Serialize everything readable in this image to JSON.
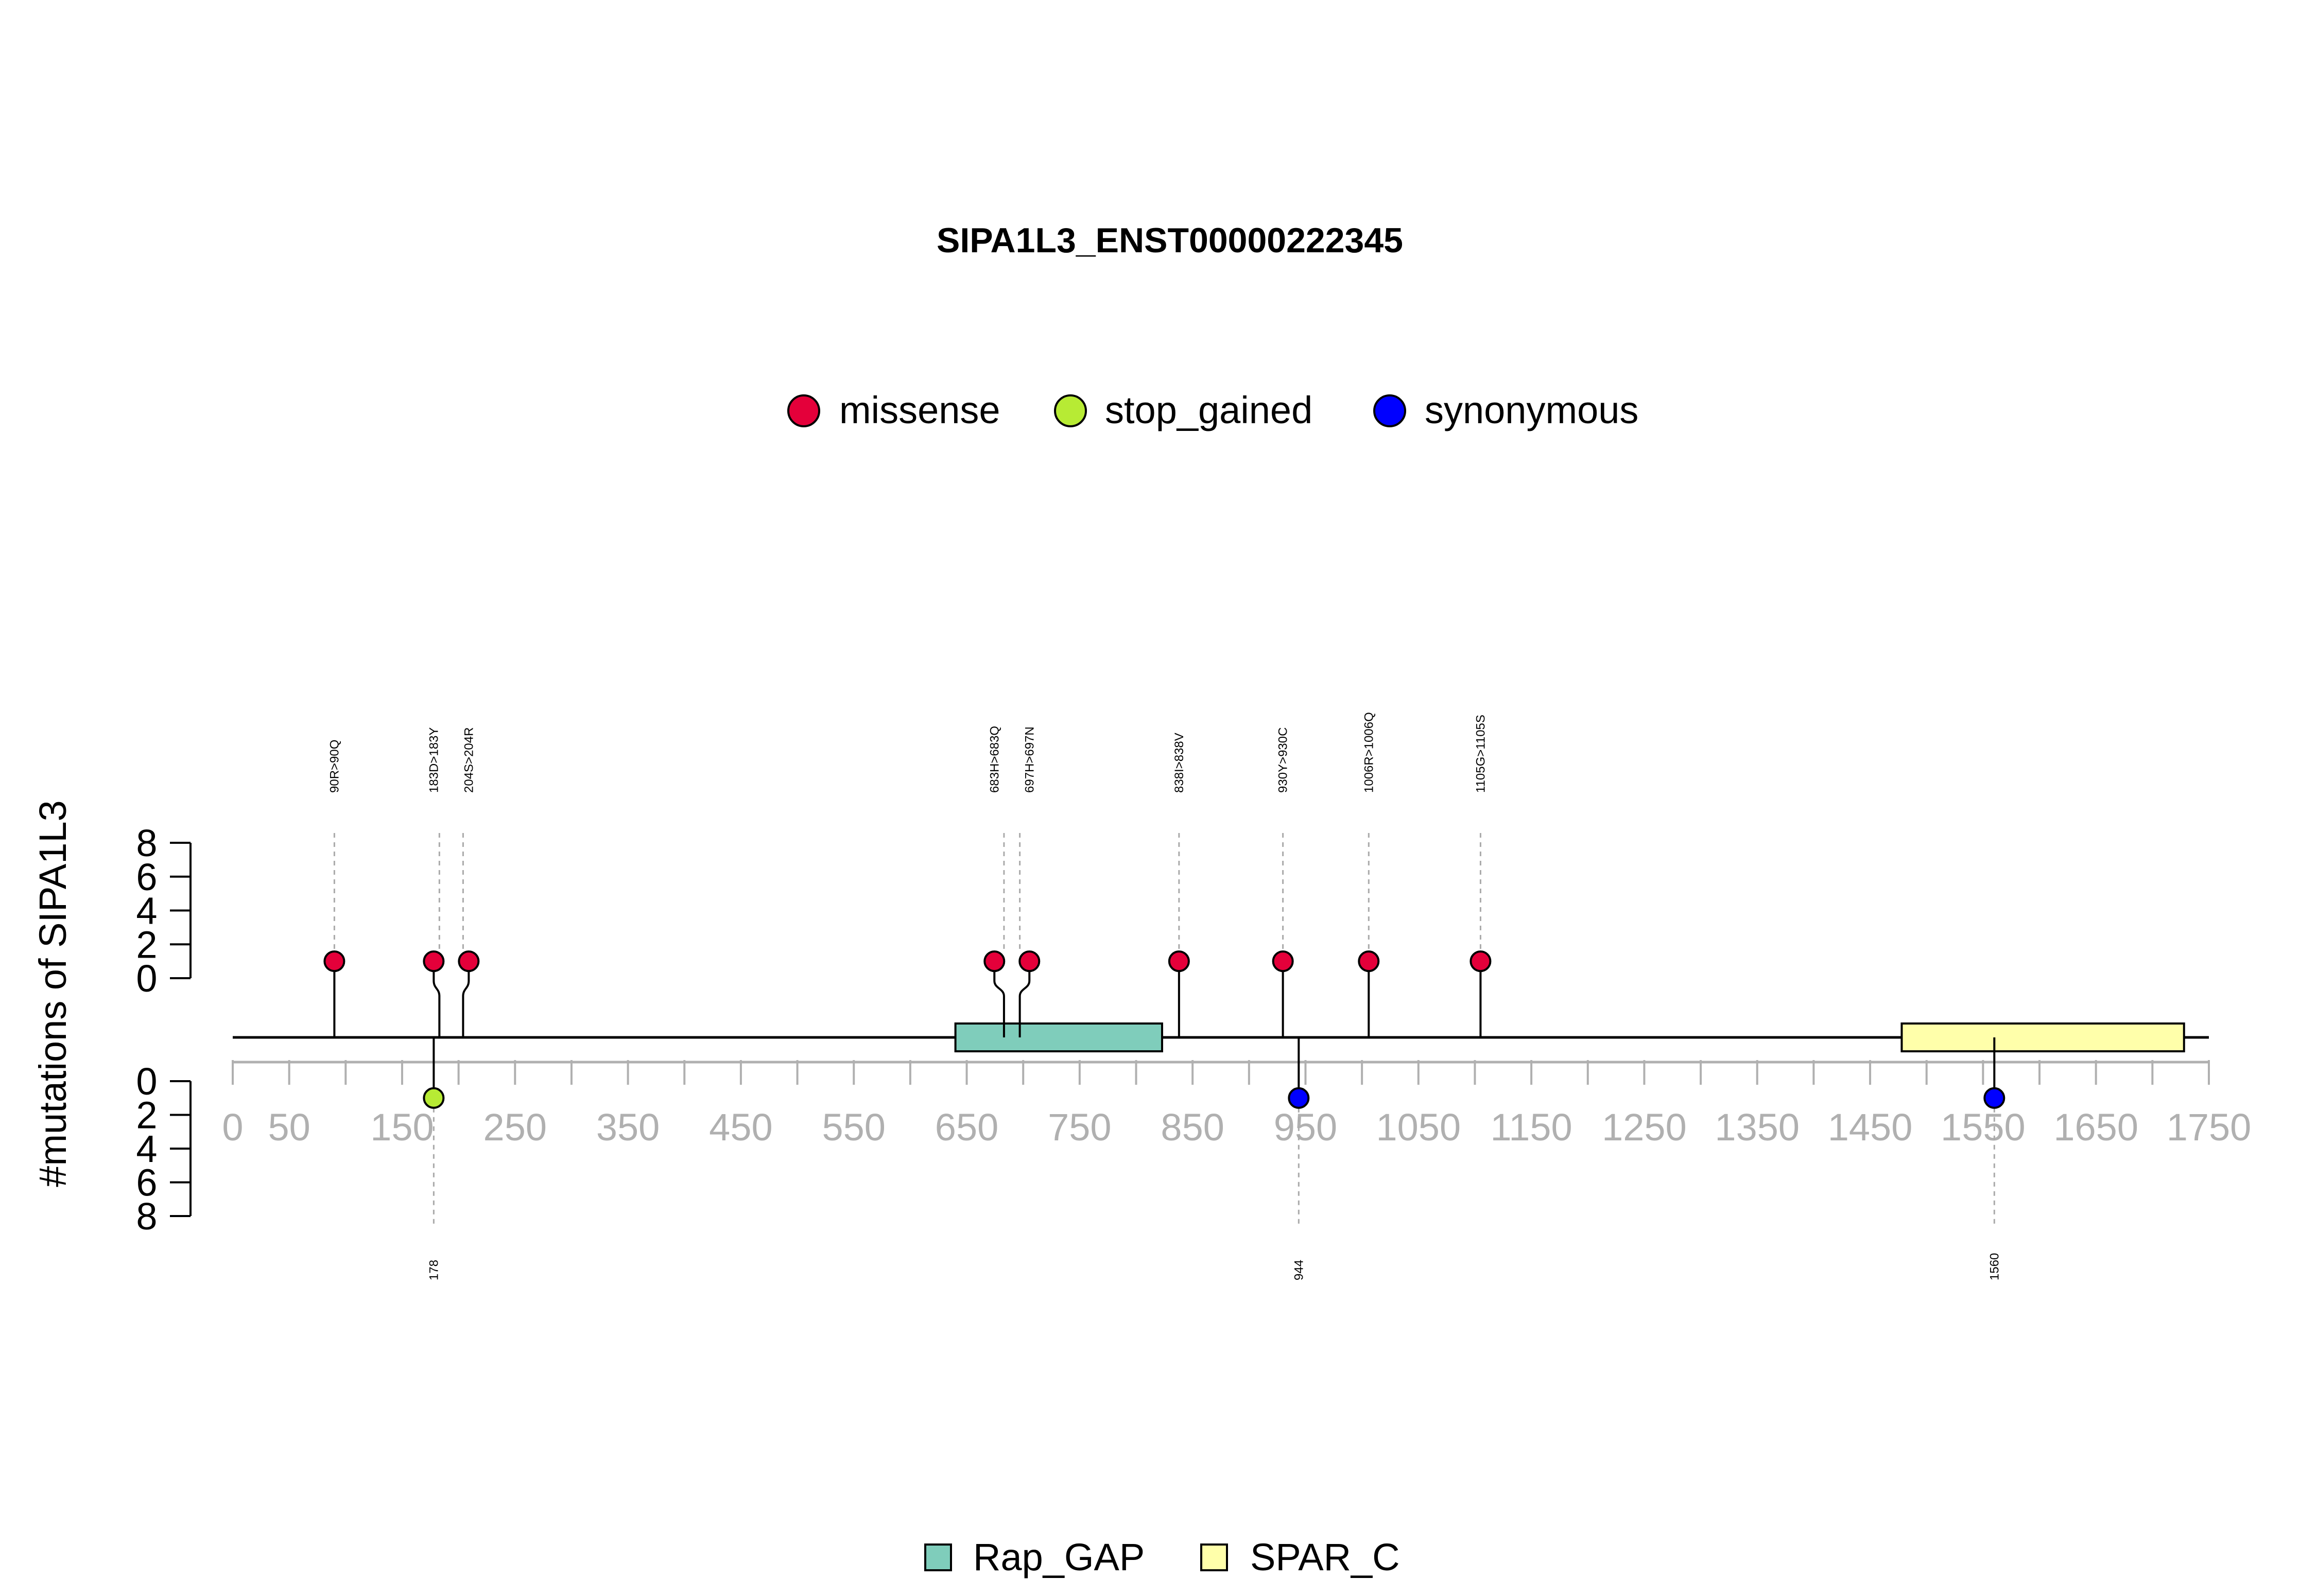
{
  "chart_data": {
    "type": "lollipop",
    "title": "SIPA1L3_ENST00000222345",
    "ylabel": "#mutations of SIPA1L3",
    "xlim": [
      0,
      1750
    ],
    "x_ticks": [
      0,
      50,
      150,
      250,
      350,
      450,
      550,
      650,
      750,
      850,
      950,
      1050,
      1150,
      1250,
      1350,
      1450,
      1550,
      1650,
      1750
    ],
    "x_minor_step": 50,
    "y_ticks_top": [
      0,
      2,
      4,
      6,
      8
    ],
    "y_ticks_bottom": [
      0,
      2,
      4,
      6,
      8
    ],
    "ylim": [
      0,
      8
    ],
    "legend_variants": [
      {
        "name": "missense",
        "color": "#E4003A"
      },
      {
        "name": "stop_gained",
        "color": "#B7EB34"
      },
      {
        "name": "synonymous",
        "color": "#0000FF"
      }
    ],
    "legend_domains": [
      {
        "name": "Rap_GAP",
        "color": "#7FCDBB"
      },
      {
        "name": "SPAR_C",
        "color": "#FFFFAA"
      }
    ],
    "domains": [
      {
        "name": "Rap_GAP",
        "start": 640,
        "end": 823,
        "color": "#7FCDBB"
      },
      {
        "name": "SPAR_C",
        "start": 1478,
        "end": 1728,
        "color": "#FFFFAA"
      }
    ],
    "mutations_top": [
      {
        "label": "90R>90Q",
        "position": 90,
        "count": 1,
        "type": "missense"
      },
      {
        "label": "183D>183Y",
        "position": 183,
        "count": 1,
        "type": "missense"
      },
      {
        "label": "204S>204R",
        "position": 204,
        "count": 1,
        "type": "missense"
      },
      {
        "label": "683H>683Q",
        "position": 683,
        "count": 1,
        "type": "missense"
      },
      {
        "label": "697H>697N",
        "position": 697,
        "count": 1,
        "type": "missense"
      },
      {
        "label": "838I>838V",
        "position": 838,
        "count": 1,
        "type": "missense"
      },
      {
        "label": "930Y>930C",
        "position": 930,
        "count": 1,
        "type": "missense"
      },
      {
        "label": "1006R>1006Q",
        "position": 1006,
        "count": 1,
        "type": "missense"
      },
      {
        "label": "1105G>1105S",
        "position": 1105,
        "count": 1,
        "type": "missense"
      }
    ],
    "mutations_bottom": [
      {
        "label": "178",
        "position": 178,
        "count": 1,
        "type": "stop_gained"
      },
      {
        "label": "944",
        "position": 944,
        "count": 1,
        "type": "synonymous"
      },
      {
        "label": "1560",
        "position": 1560,
        "count": 1,
        "type": "synonymous"
      }
    ]
  }
}
